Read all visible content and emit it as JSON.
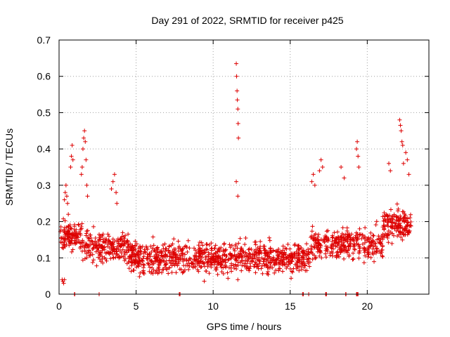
{
  "chart_data": {
    "type": "scatter",
    "title": "Day 291 of 2022, SRMTID for receiver p425",
    "xlabel": "GPS time / hours",
    "ylabel": "SRMTID / TECUs",
    "xlim": [
      0,
      24
    ],
    "ylim": [
      0,
      0.7
    ],
    "xticks": [
      0,
      5,
      10,
      15,
      20
    ],
    "xtick_labels": [
      "0",
      "5",
      "10",
      "15",
      "20"
    ],
    "yticks": [
      0,
      0.1,
      0.2,
      0.3,
      0.4,
      0.5,
      0.6,
      0.7
    ],
    "ytick_labels": [
      "0",
      "0.1",
      "0.2",
      "0.3",
      "0.4",
      "0.5",
      "0.6",
      "0.7"
    ],
    "grid": true,
    "marker": "+",
    "color": "#dd0000",
    "spike_points": {
      "x": [
        0.35,
        0.4,
        0.45,
        0.5,
        0.55,
        0.6,
        0.75,
        0.8,
        0.85,
        0.9,
        1.45,
        1.5,
        1.55,
        1.6,
        1.65,
        1.7,
        1.75,
        1.8,
        1.85,
        3.4,
        3.5,
        3.6,
        3.7,
        3.75,
        11.5,
        11.52,
        11.55,
        11.57,
        11.6,
        11.62,
        11.64,
        11.5,
        11.6,
        16.4,
        16.5,
        16.6,
        16.9,
        17.0,
        17.1,
        18.3,
        18.5,
        19.3,
        19.35,
        19.4,
        19.45,
        21.4,
        21.5,
        22.1,
        22.15,
        22.2,
        22.25,
        22.3,
        22.35,
        22.5,
        22.6,
        22.7
      ],
      "y": [
        0.26,
        0.28,
        0.3,
        0.27,
        0.25,
        0.22,
        0.35,
        0.38,
        0.41,
        0.37,
        0.33,
        0.35,
        0.4,
        0.43,
        0.45,
        0.42,
        0.37,
        0.3,
        0.27,
        0.29,
        0.31,
        0.33,
        0.28,
        0.25,
        0.635,
        0.6,
        0.56,
        0.535,
        0.51,
        0.47,
        0.43,
        0.31,
        0.27,
        0.31,
        0.33,
        0.3,
        0.34,
        0.37,
        0.35,
        0.35,
        0.32,
        0.4,
        0.42,
        0.38,
        0.35,
        0.36,
        0.34,
        0.48,
        0.465,
        0.45,
        0.42,
        0.41,
        0.36,
        0.39,
        0.37,
        0.33
      ]
    },
    "baseline_points": {
      "x": [
        0.2,
        0.25,
        0.3,
        0.35,
        1.0,
        1.02,
        2.6,
        7.8,
        7.85,
        11.6,
        15.8,
        15.85,
        16.2,
        17.3,
        17.32,
        17.35,
        18.6,
        18.62,
        19.3,
        19.32,
        19.35,
        19.4
      ],
      "y": [
        0.04,
        0.035,
        0.03,
        0.04,
        0.0,
        0.0,
        0.0,
        0.0,
        0.0,
        0.04,
        0.0,
        0.0,
        0.0,
        0.0,
        0.0,
        0.0,
        0.0,
        0.0,
        0.0,
        0.0,
        0.0,
        0.0
      ]
    }
  }
}
